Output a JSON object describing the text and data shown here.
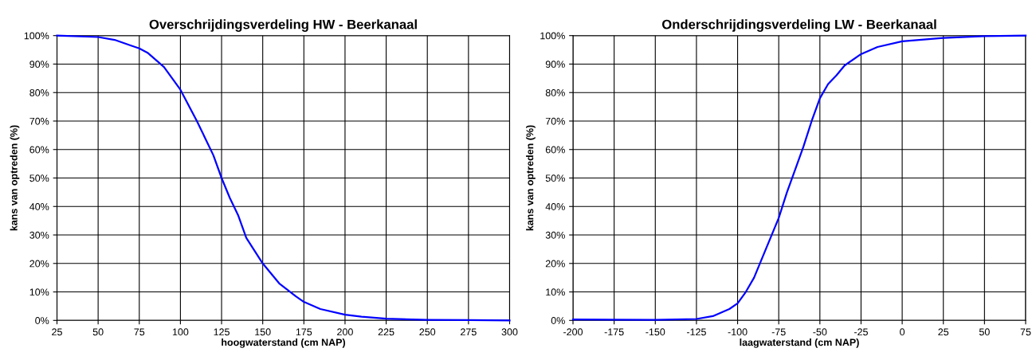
{
  "chart_data": [
    {
      "type": "line",
      "title": "Overschrijdingsverdeling HW - Beerkanaal",
      "xlabel": "hoogwaterstand (cm NAP)",
      "ylabel": "kans van optreden (%)",
      "grid": true,
      "legend": false,
      "marker": "none",
      "line_style": "solid",
      "xlim": [
        25,
        300
      ],
      "xticks": [
        25,
        50,
        75,
        100,
        125,
        150,
        175,
        200,
        225,
        250,
        275,
        300
      ],
      "ylim": [
        0,
        100
      ],
      "yticks": [
        {
          "value": 0,
          "label": "0%"
        },
        {
          "value": 10,
          "label": "10%"
        },
        {
          "value": 20,
          "label": "20%"
        },
        {
          "value": 30,
          "label": "30%"
        },
        {
          "value": 40,
          "label": "40%"
        },
        {
          "value": 50,
          "label": "50%"
        },
        {
          "value": 60,
          "label": "60%"
        },
        {
          "value": 70,
          "label": "70%"
        },
        {
          "value": 80,
          "label": "80%"
        },
        {
          "value": 90,
          "label": "90%"
        },
        {
          "value": 100,
          "label": "100%"
        }
      ],
      "series": [
        {
          "color": "#0000ff",
          "x": [
            25,
            50,
            60,
            70,
            75,
            80,
            90,
            100,
            110,
            120,
            125,
            130,
            135,
            140,
            150,
            160,
            170,
            175,
            185,
            200,
            210,
            225,
            250,
            275,
            300
          ],
          "values": [
            100,
            99.5,
            98.5,
            96.5,
            95.5,
            94,
            89,
            81,
            70,
            58,
            50,
            43,
            37,
            29,
            20,
            13,
            8.5,
            6.5,
            4,
            2,
            1.3,
            0.6,
            0.2,
            0.1,
            0
          ]
        }
      ]
    },
    {
      "type": "line",
      "title": "Onderschrijdingsverdeling LW - Beerkanaal",
      "xlabel": "laagwaterstand (cm NAP)",
      "ylabel": "kans van optreden (%)",
      "grid": true,
      "legend": false,
      "marker": "none",
      "line_style": "solid",
      "xlim": [
        -200,
        75
      ],
      "xticks": [
        -200,
        -175,
        -150,
        -125,
        -100,
        -75,
        -50,
        -25,
        0,
        25,
        50,
        75
      ],
      "ylim": [
        0,
        100
      ],
      "yticks": [
        {
          "value": 0,
          "label": "0%"
        },
        {
          "value": 10,
          "label": "10%"
        },
        {
          "value": 20,
          "label": "20%"
        },
        {
          "value": 30,
          "label": "30%"
        },
        {
          "value": 40,
          "label": "40%"
        },
        {
          "value": 50,
          "label": "50%"
        },
        {
          "value": 60,
          "label": "60%"
        },
        {
          "value": 70,
          "label": "70%"
        },
        {
          "value": 80,
          "label": "80%"
        },
        {
          "value": 90,
          "label": "90%"
        },
        {
          "value": 100,
          "label": "100%"
        }
      ],
      "series": [
        {
          "color": "#0000ff",
          "x": [
            -200,
            -150,
            -125,
            -115,
            -105,
            -100,
            -95,
            -90,
            -85,
            -80,
            -75,
            -70,
            -65,
            -60,
            -55,
            -50,
            -45,
            -40,
            -35,
            -25,
            -15,
            0,
            25,
            50,
            75
          ],
          "values": [
            0.3,
            0.2,
            0.5,
            1.5,
            4,
            6,
            10,
            15,
            22,
            29,
            36,
            45,
            53,
            61,
            70,
            78,
            83,
            86,
            89.5,
            93.5,
            96,
            98,
            99.2,
            99.8,
            100
          ]
        }
      ]
    }
  ]
}
